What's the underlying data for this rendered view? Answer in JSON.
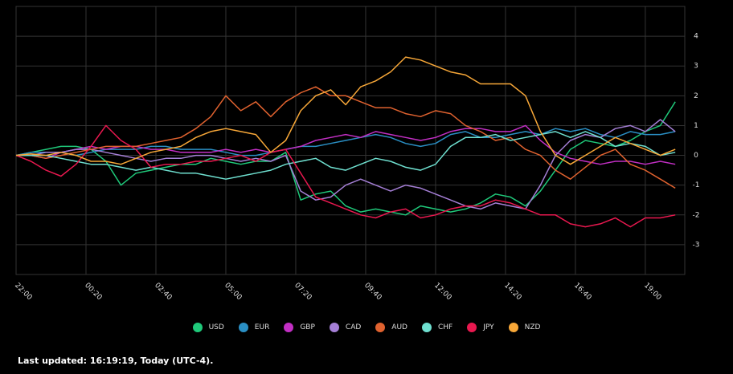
{
  "chart_data": {
    "type": "line",
    "x": [
      0,
      30,
      60,
      90,
      120,
      150,
      180,
      210,
      240,
      270,
      300,
      330,
      360,
      390,
      420,
      450,
      480,
      510,
      540,
      570,
      600,
      630,
      660,
      690,
      720,
      750,
      780,
      810,
      840,
      870,
      900,
      930,
      960,
      990,
      1020,
      1050,
      1080,
      1110,
      1140,
      1170,
      1200,
      1230,
      1260,
      1290,
      1320
    ],
    "xlim": [
      0,
      1339
    ],
    "xticks": [
      {
        "value": 0,
        "label": "22:00"
      },
      {
        "value": 140,
        "label": "00:20"
      },
      {
        "value": 280,
        "label": "02:40"
      },
      {
        "value": 420,
        "label": "05:00"
      },
      {
        "value": 560,
        "label": "07:20"
      },
      {
        "value": 700,
        "label": "09:40"
      },
      {
        "value": 840,
        "label": "12:00"
      },
      {
        "value": 980,
        "label": "14:20"
      },
      {
        "value": 1120,
        "label": "16:40"
      },
      {
        "value": 1260,
        "label": "19:00"
      }
    ],
    "ylim": [
      -4,
      5
    ],
    "yticks": [
      -3,
      -2,
      -1,
      0,
      1,
      2,
      3,
      4
    ],
    "grid": true,
    "series": [
      {
        "name": "USD",
        "color": "#1fc97a",
        "values": [
          0,
          0.1,
          0.2,
          0.3,
          0.3,
          0.2,
          -0.2,
          -1.0,
          -0.6,
          -0.5,
          -0.4,
          -0.3,
          -0.3,
          -0.1,
          -0.2,
          -0.3,
          -0.2,
          -0.2,
          0.1,
          -1.5,
          -1.3,
          -1.2,
          -1.7,
          -1.9,
          -1.8,
          -1.9,
          -2.0,
          -1.7,
          -1.8,
          -1.9,
          -1.8,
          -1.6,
          -1.3,
          -1.4,
          -1.7,
          -1.2,
          -0.5,
          0.2,
          0.5,
          0.4,
          0.3,
          0.5,
          0.8,
          1.0,
          1.8
        ]
      },
      {
        "name": "EUR",
        "color": "#2a8fc4",
        "values": [
          0,
          0.1,
          0.1,
          0.1,
          0,
          0.1,
          0.2,
          0.2,
          0.2,
          0.3,
          0.3,
          0.2,
          0.2,
          0.2,
          0.1,
          0.0,
          0.0,
          0.1,
          0.2,
          0.3,
          0.3,
          0.4,
          0.5,
          0.6,
          0.7,
          0.6,
          0.4,
          0.3,
          0.4,
          0.7,
          0.8,
          0.6,
          0.6,
          0.7,
          0.8,
          0.7,
          0.9,
          0.8,
          0.9,
          0.7,
          0.6,
          0.8,
          0.7,
          0.7,
          0.8
        ]
      },
      {
        "name": "GBP",
        "color": "#c22fc4",
        "values": [
          0,
          0,
          -0.1,
          0.1,
          0.2,
          0.3,
          0.2,
          0.3,
          0.3,
          0.2,
          0.2,
          0.1,
          0.1,
          0.1,
          0.2,
          0.1,
          0.2,
          0.1,
          0.2,
          0.3,
          0.5,
          0.6,
          0.7,
          0.6,
          0.8,
          0.7,
          0.6,
          0.5,
          0.6,
          0.8,
          0.9,
          0.9,
          0.8,
          0.8,
          1.0,
          0.5,
          0.1,
          -0.1,
          -0.2,
          -0.3,
          -0.2,
          -0.2,
          -0.3,
          -0.2,
          -0.3
        ]
      },
      {
        "name": "CAD",
        "color": "#a57fd6",
        "values": [
          0,
          0,
          0.1,
          0.1,
          0.2,
          0.2,
          0.1,
          0,
          -0.1,
          -0.2,
          -0.1,
          -0.1,
          0,
          0,
          -0.1,
          -0.2,
          -0.1,
          -0.2,
          0,
          -1.2,
          -1.5,
          -1.4,
          -1.0,
          -0.8,
          -1.0,
          -1.2,
          -1.0,
          -1.1,
          -1.3,
          -1.5,
          -1.7,
          -1.8,
          -1.6,
          -1.7,
          -1.8,
          -1.0,
          0,
          0.5,
          0.7,
          0.6,
          0.9,
          1.0,
          0.8,
          1.2,
          0.8
        ]
      },
      {
        "name": "AUD",
        "color": "#e0622f",
        "values": [
          0,
          0,
          -0.1,
          0,
          0.1,
          0.2,
          0.3,
          0.3,
          0.3,
          0.4,
          0.5,
          0.6,
          0.9,
          1.3,
          2.0,
          1.5,
          1.8,
          1.3,
          1.8,
          2.1,
          2.3,
          2.0,
          2.0,
          1.8,
          1.6,
          1.6,
          1.4,
          1.3,
          1.5,
          1.4,
          1.0,
          0.8,
          0.5,
          0.6,
          0.2,
          0.0,
          -0.5,
          -0.8,
          -0.4,
          0,
          0.2,
          -0.3,
          -0.5,
          -0.8,
          -1.1
        ]
      },
      {
        "name": "CHF",
        "color": "#6fe0d0",
        "values": [
          0,
          0,
          0,
          -0.1,
          -0.2,
          -0.3,
          -0.3,
          -0.4,
          -0.5,
          -0.4,
          -0.5,
          -0.6,
          -0.6,
          -0.7,
          -0.8,
          -0.7,
          -0.6,
          -0.5,
          -0.3,
          -0.2,
          -0.1,
          -0.4,
          -0.5,
          -0.3,
          -0.1,
          -0.2,
          -0.4,
          -0.5,
          -0.3,
          0.3,
          0.6,
          0.6,
          0.7,
          0.5,
          0.6,
          0.7,
          0.8,
          0.6,
          0.8,
          0.6,
          0.3,
          0.4,
          0.3,
          0.0,
          0.1
        ]
      },
      {
        "name": "JPY",
        "color": "#e8184f",
        "values": [
          0,
          -0.2,
          -0.5,
          -0.7,
          -0.3,
          0.3,
          1.0,
          0.5,
          0.2,
          -0.4,
          -0.3,
          -0.3,
          -0.2,
          -0.2,
          -0.1,
          0,
          -0.2,
          0.1,
          0.2,
          -0.6,
          -1.4,
          -1.6,
          -1.8,
          -2.0,
          -2.1,
          -1.9,
          -1.8,
          -2.1,
          -2.0,
          -1.8,
          -1.7,
          -1.7,
          -1.5,
          -1.6,
          -1.8,
          -2.0,
          -2.0,
          -2.3,
          -2.4,
          -2.3,
          -2.1,
          -2.4,
          -2.1,
          -2.1,
          -2.0
        ]
      },
      {
        "name": "NZD",
        "color": "#f7a738",
        "values": [
          0,
          0.05,
          0,
          0.1,
          0,
          -0.2,
          -0.2,
          -0.3,
          -0.1,
          0.1,
          0.2,
          0.3,
          0.6,
          0.8,
          0.9,
          0.8,
          0.7,
          0.1,
          0.5,
          1.5,
          2.0,
          2.2,
          1.7,
          2.3,
          2.5,
          2.8,
          3.3,
          3.2,
          3.0,
          2.8,
          2.7,
          2.4,
          2.4,
          2.4,
          2.0,
          0.8,
          0,
          -0.3,
          0,
          0.3,
          0.6,
          0.4,
          0.2,
          0,
          0.2
        ]
      }
    ]
  },
  "footer": "Last updated: 16:19:19, Today (UTC-4)."
}
